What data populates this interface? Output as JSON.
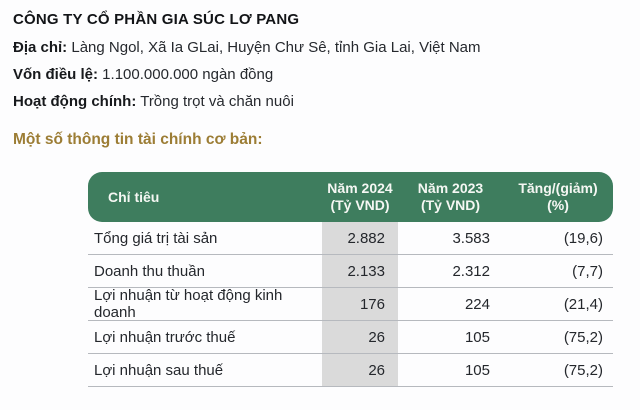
{
  "company": {
    "name": "CÔNG TY CỔ PHẦN GIA SÚC LƠ PANG",
    "fields": [
      {
        "label": "Địa chỉ:",
        "value": " Làng Ngol, Xã Ia GLai, Huyện Chư Sê, tỉnh Gia Lai, Việt Nam"
      },
      {
        "label": "Vốn điều lệ:",
        "value": " 1.100.000.000 ngàn đồng"
      },
      {
        "label": "Hoạt động chính:",
        "value": " Trồng trọt và chăn nuôi"
      }
    ]
  },
  "section_heading": "Một số thông tin tài chính cơ bản:",
  "table": {
    "header": {
      "col1": "Chỉ tiêu",
      "col2_line1": "Năm 2024",
      "col2_line2": "(Tỷ VND)",
      "col3_line1": "Năm 2023",
      "col3_line2": "(Tỷ VND)",
      "col4_line1": "Tăng/(giảm)",
      "col4_line2": "(%)"
    },
    "rows": [
      [
        "Tổng giá trị tài sản",
        "2.882",
        "3.583",
        "(19,6)"
      ],
      [
        "Doanh thu thuần",
        "2.133",
        "2.312",
        "(7,7)"
      ],
      [
        "Lợi nhuận từ hoạt động kinh doanh",
        "176",
        "224",
        "(21,4)"
      ],
      [
        "Lợi nhuận trước thuế",
        "26",
        "105",
        "(75,2)"
      ],
      [
        "Lợi nhuận sau thuế",
        "26",
        "105",
        "(75,2)"
      ]
    ]
  },
  "chart_data": {
    "type": "table",
    "title": "Một số thông tin tài chính cơ bản:",
    "columns": [
      "Chỉ tiêu",
      "Năm 2024 (Tỷ VND)",
      "Năm 2023 (Tỷ VND)",
      "Tăng/(giảm) (%)"
    ],
    "rows": [
      {
        "chi_tieu": "Tổng giá trị tài sản",
        "nam_2024": 2882,
        "nam_2023": 3583,
        "tang_giam_pct": -19.6
      },
      {
        "chi_tieu": "Doanh thu thuần",
        "nam_2024": 2133,
        "nam_2023": 2312,
        "tang_giam_pct": -7.7
      },
      {
        "chi_tieu": "Lợi nhuận từ hoạt động kinh doanh",
        "nam_2024": 176,
        "nam_2023": 224,
        "tang_giam_pct": -21.4
      },
      {
        "chi_tieu": "Lợi nhuận trước thuế",
        "nam_2024": 26,
        "nam_2023": 105,
        "tang_giam_pct": -75.2
      },
      {
        "chi_tieu": "Lợi nhuận sau thuế",
        "nam_2024": 26,
        "nam_2023": 105,
        "tang_giam_pct": -75.2
      }
    ],
    "units": "Tỷ VND"
  },
  "colors": {
    "table_header_green": "#3e7d5e",
    "section_heading_gold": "#9c7d35",
    "highlight_column_gray": "#dadada",
    "row_divider_gray": "#b6b9be"
  }
}
